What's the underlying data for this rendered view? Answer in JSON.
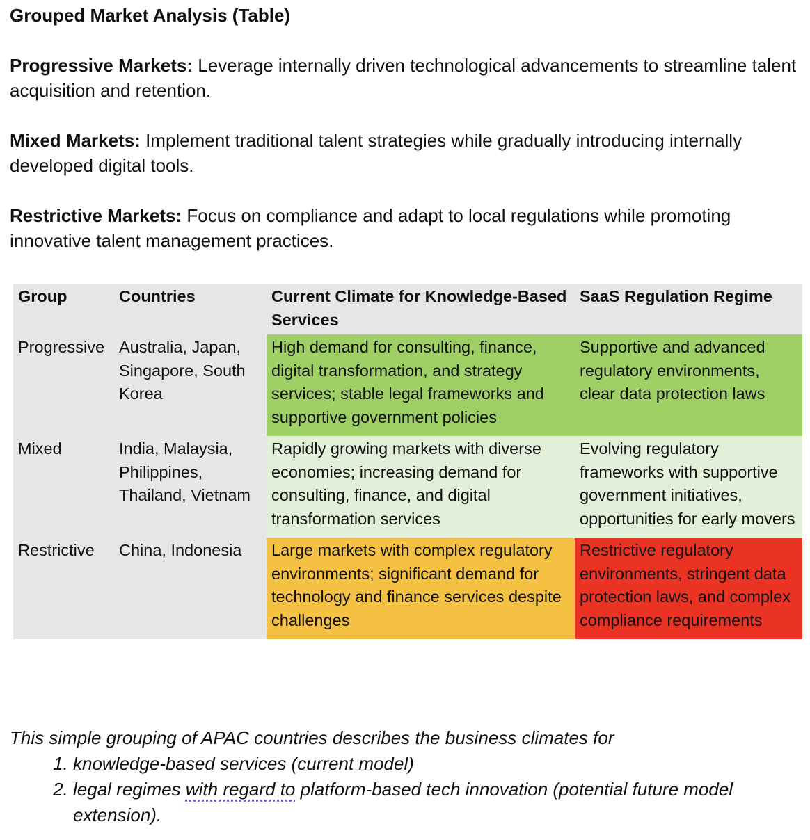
{
  "title": "Grouped Market Analysis (Table)",
  "intro": [
    {
      "label": "Progressive Markets:",
      "text": " Leverage internally driven technological advancements to streamline talent acquisition and retention."
    },
    {
      "label": "Mixed Markets:",
      "text": " Implement traditional talent strategies while gradually introducing internally developed digital tools."
    },
    {
      "label": "Restrictive Markets:",
      "text": " Focus on compliance and adapt to local regulations while promoting innovative talent management practices."
    }
  ],
  "table": {
    "headers": [
      "Group",
      "Countries",
      "Current Climate for Knowledge-Based Services",
      "SaaS Regulation Regime"
    ],
    "rows": [
      {
        "group": "Progressive",
        "countries": "Australia, Japan, Singapore, South Korea",
        "climate": "High demand for consulting, finance, digital transformation, and strategy services; stable legal frameworks and supportive government policies",
        "regime": "Supportive and advanced regulatory environments, clear data protection laws",
        "climate_color": "#9fd065",
        "regime_color": "#9fd065"
      },
      {
        "group": "Mixed",
        "countries": "India, Malaysia, Philippines, Thailand, Vietnam",
        "climate": "Rapidly growing markets with diverse economies; increasing demand for consulting, finance, and digital transformation services",
        "regime": "Evolving regulatory frameworks with supportive government initiatives, opportunities for early movers",
        "climate_color": "#e2efd9",
        "regime_color": "#e2efd9"
      },
      {
        "group": "Restrictive",
        "countries": "China, Indonesia",
        "climate": "Large markets with complex regulatory environments; significant demand for technology and finance services despite challenges",
        "regime": "Restrictive regulatory environments, stringent data protection laws, and complex compliance requirements",
        "climate_color": "#f4c142",
        "regime_color": "#ea3323"
      }
    ],
    "header_color": "#e6e6e6"
  },
  "caption": {
    "lead": "This simple grouping of APAC countries describes the business climates for",
    "items": [
      {
        "before": "knowledge-based services (current model)",
        "flagged": "",
        "after": ""
      },
      {
        "before": "legal regimes ",
        "flagged": "with regard to",
        "after": " platform-based tech innovation (potential future model extension)."
      }
    ]
  }
}
